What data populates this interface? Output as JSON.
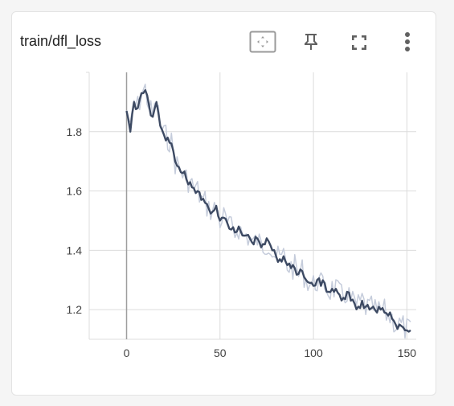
{
  "panel": {
    "title": "train/dfl_loss",
    "icons": [
      "fit-domain-icon",
      "pin-icon",
      "fullscreen-icon",
      "more-vert-icon"
    ]
  },
  "colors": {
    "smoothed_line": "#3d4a63",
    "raw_line": "#c5ccdb",
    "grid": "#dcdcdc",
    "axis": "#9e9e9e"
  },
  "chart_data": {
    "type": "line",
    "title": "train/dfl_loss",
    "xlabel": "",
    "ylabel": "",
    "xlim": [
      -20,
      155
    ],
    "ylim": [
      1.1,
      2.0
    ],
    "x_ticks": [
      0,
      50,
      100,
      150
    ],
    "y_ticks": [
      1.2,
      1.4,
      1.6,
      1.8
    ],
    "grid": true,
    "series": [
      {
        "x": [
          0,
          2,
          4,
          6,
          8,
          10,
          12,
          14,
          16,
          18,
          20,
          22,
          24,
          26,
          28,
          30,
          32,
          34,
          36,
          38,
          40,
          42,
          44,
          46,
          48,
          50,
          52,
          54,
          56,
          58,
          60,
          62,
          64,
          66,
          68,
          70,
          72,
          74,
          76,
          78,
          80,
          82,
          84,
          86,
          88,
          90,
          92,
          94,
          96,
          98,
          100,
          102,
          104,
          106,
          108,
          110,
          112,
          114,
          116,
          118,
          120,
          122,
          124,
          126,
          128,
          130,
          132,
          134,
          136,
          138,
          140,
          142,
          144,
          146,
          148,
          150,
          152
        ],
        "values": [
          1.87,
          1.8,
          1.9,
          1.88,
          1.93,
          1.94,
          1.89,
          1.85,
          1.9,
          1.82,
          1.79,
          1.78,
          1.76,
          1.7,
          1.68,
          1.66,
          1.64,
          1.63,
          1.61,
          1.6,
          1.57,
          1.56,
          1.54,
          1.53,
          1.55,
          1.5,
          1.51,
          1.49,
          1.47,
          1.46,
          1.48,
          1.45,
          1.45,
          1.44,
          1.42,
          1.44,
          1.41,
          1.42,
          1.43,
          1.4,
          1.38,
          1.37,
          1.38,
          1.35,
          1.34,
          1.34,
          1.32,
          1.33,
          1.3,
          1.29,
          1.28,
          1.3,
          1.28,
          1.29,
          1.26,
          1.27,
          1.27,
          1.25,
          1.24,
          1.26,
          1.23,
          1.22,
          1.21,
          1.23,
          1.21,
          1.2,
          1.21,
          1.19,
          1.2,
          1.19,
          1.18,
          1.17,
          1.15,
          1.15,
          1.14,
          1.13,
          1.13
        ]
      }
    ]
  }
}
